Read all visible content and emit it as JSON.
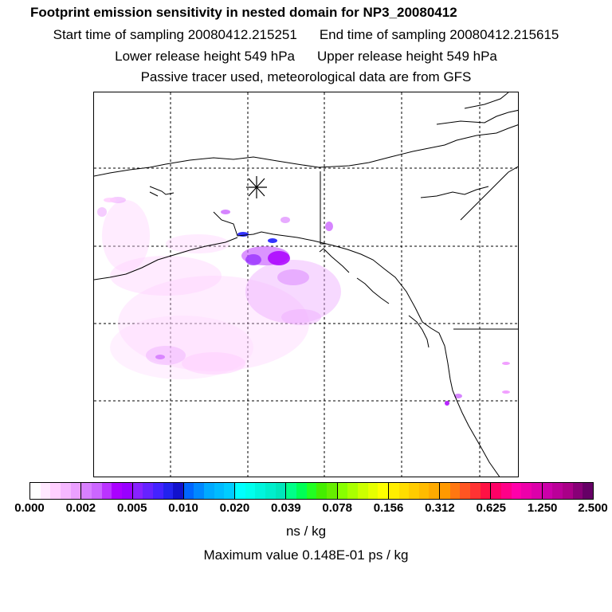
{
  "header": {
    "title": "Footprint emission sensitivity in nested domain for NP3_20080412",
    "start_time": "Start time of sampling 20080412.215251",
    "end_time": "End time of sampling 20080412.215615",
    "lower_height": "Lower release height  549 hPa",
    "upper_height": "Upper release height  549 hPa",
    "tracer_note": "Passive tracer used, meteorological data are from GFS"
  },
  "map": {
    "background": "#ffffff",
    "coast_color": "#000000",
    "grid_color": "#000000",
    "receptor_marker": "asterisk",
    "plume_colors": [
      "#ffccff",
      "#ee99ff",
      "#cc66ff",
      "#aa00ff",
      "#7a10ff",
      "#3333ff"
    ]
  },
  "colorbar": {
    "tick_labels": [
      "0.000",
      "0.002",
      "0.005",
      "0.010",
      "0.020",
      "0.039",
      "0.078",
      "0.156",
      "0.312",
      "0.625",
      "1.250",
      "2.500"
    ],
    "segments": [
      [
        "#ffffff",
        "#ffe8ff",
        "#ffd0ff",
        "#f5b8ff",
        "#eba0ff"
      ],
      [
        "#d880ff",
        "#cc66ff",
        "#bb33ff",
        "#aa00ff",
        "#9900ff"
      ],
      [
        "#8822ff",
        "#6622ff",
        "#4422ff",
        "#2222ee",
        "#1111cc"
      ],
      [
        "#0066ff",
        "#0088ff",
        "#00aaff",
        "#00bbff",
        "#00ccff"
      ],
      [
        "#00ffff",
        "#00ffee",
        "#00f5dd",
        "#00eecc",
        "#00e6bb"
      ],
      [
        "#00ff88",
        "#00ff55",
        "#22ff22",
        "#44ee00",
        "#66ee00"
      ],
      [
        "#88ff00",
        "#aaff00",
        "#ccff00",
        "#e6ff00",
        "#ffff00"
      ],
      [
        "#ffee00",
        "#ffdd00",
        "#ffcc00",
        "#ffbb00",
        "#ffaa00"
      ],
      [
        "#ff9900",
        "#ff7711",
        "#ff5522",
        "#ff3333",
        "#ff1144"
      ],
      [
        "#ff0066",
        "#ff0088",
        "#ff00aa",
        "#ee00aa",
        "#dd00aa"
      ],
      [
        "#cc00aa",
        "#bb0099",
        "#aa0088",
        "#880077",
        "#660066"
      ]
    ]
  },
  "unit_label": "ns / kg",
  "max_value": "Maximum value  0.148E-01 ps / kg"
}
